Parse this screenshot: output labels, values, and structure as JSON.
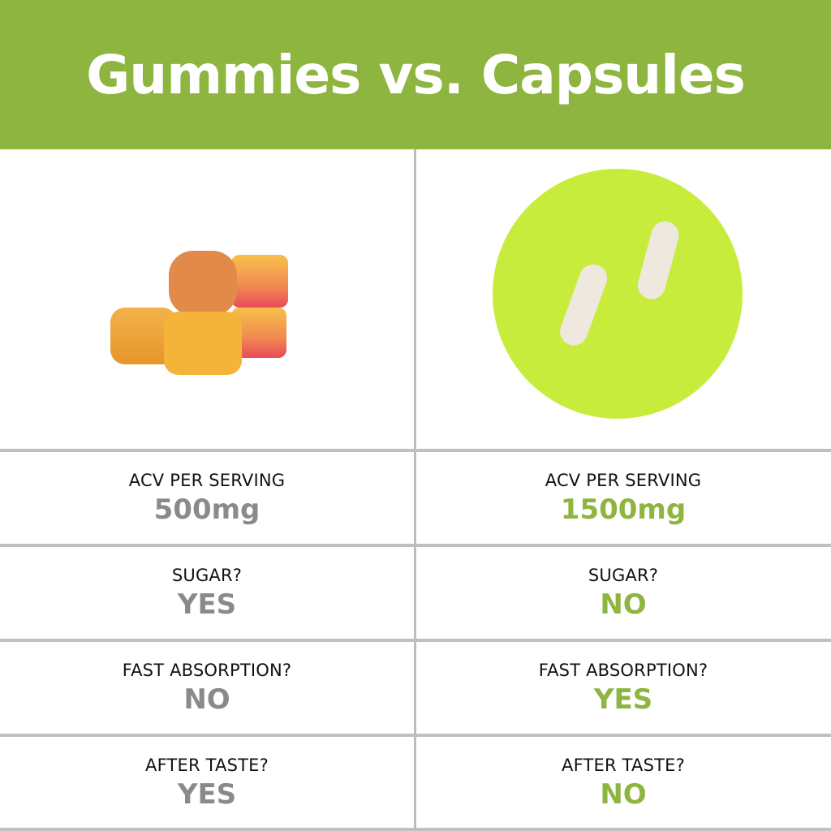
{
  "title": "Gummies vs. Capsules",
  "colors": {
    "brand_green": "#8db53f",
    "gray": "#8a8a8a",
    "circle": "#c8ec3c"
  },
  "rows": [
    {
      "label": "ACV PER SERVING",
      "gummies": "500mg",
      "capsules": "1500mg"
    },
    {
      "label": "SUGAR?",
      "gummies": "YES",
      "capsules": "NO"
    },
    {
      "label": "FAST ABSORPTION?",
      "gummies": "NO",
      "capsules": "YES"
    },
    {
      "label": "AFTER TASTE?",
      "gummies": "YES",
      "capsules": "NO"
    }
  ]
}
